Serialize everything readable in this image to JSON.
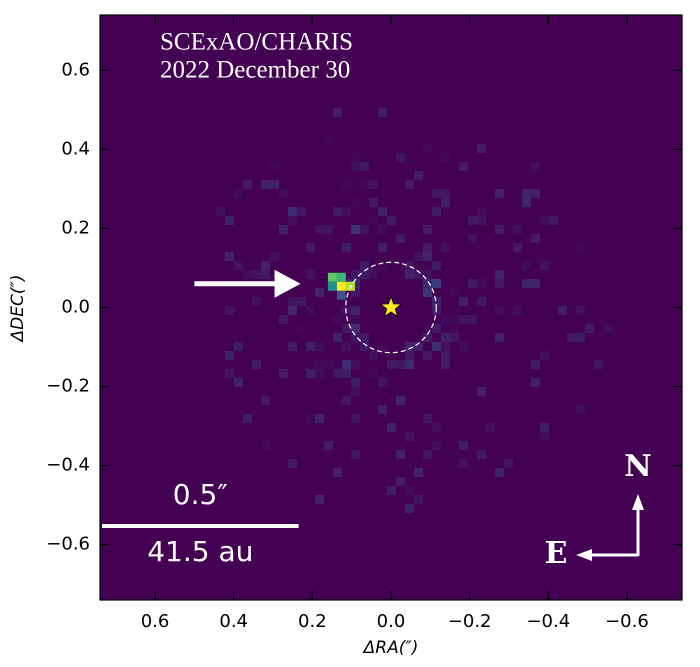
{
  "chart_data": {
    "type": "image",
    "annotations": [
      "SCExAO/CHARIS",
      "2022 December 30"
    ],
    "x_label": "ΔRA(″)",
    "y_label": "ΔDEC(″)",
    "xlim": [
      0.74,
      -0.74
    ],
    "ylim": [
      -0.74,
      0.74
    ],
    "xticks": [
      0.6,
      0.4,
      0.2,
      {
        "value": 0,
        "label": "0.0"
      },
      {
        "value": -0.2,
        "label": "−0.2"
      },
      {
        "value": -0.4,
        "label": "−0.4"
      },
      {
        "value": -0.6,
        "label": "−0.6"
      }
    ],
    "yticks": [
      {
        "value": -0.6,
        "label": "−0.6"
      },
      {
        "value": -0.4,
        "label": "−0.4"
      },
      {
        "value": -0.2,
        "label": "−0.2"
      },
      {
        "value": 0,
        "label": "0.0"
      },
      0.2,
      0.4,
      0.6
    ],
    "background": "#440154",
    "star": {
      "x": 0,
      "y": 0,
      "color": "#fde725"
    },
    "mask_radius": 0.115,
    "companion": {
      "x": 0.135,
      "y": 0.06
    },
    "arrow": {
      "x_start": 0.5,
      "x_end": 0.23,
      "y": 0.06
    },
    "scale_bar": {
      "length": 0.5,
      "label": "0.5″",
      "physical_label": "41.5 au"
    },
    "compass": {
      "north": "N",
      "east": "E"
    }
  }
}
